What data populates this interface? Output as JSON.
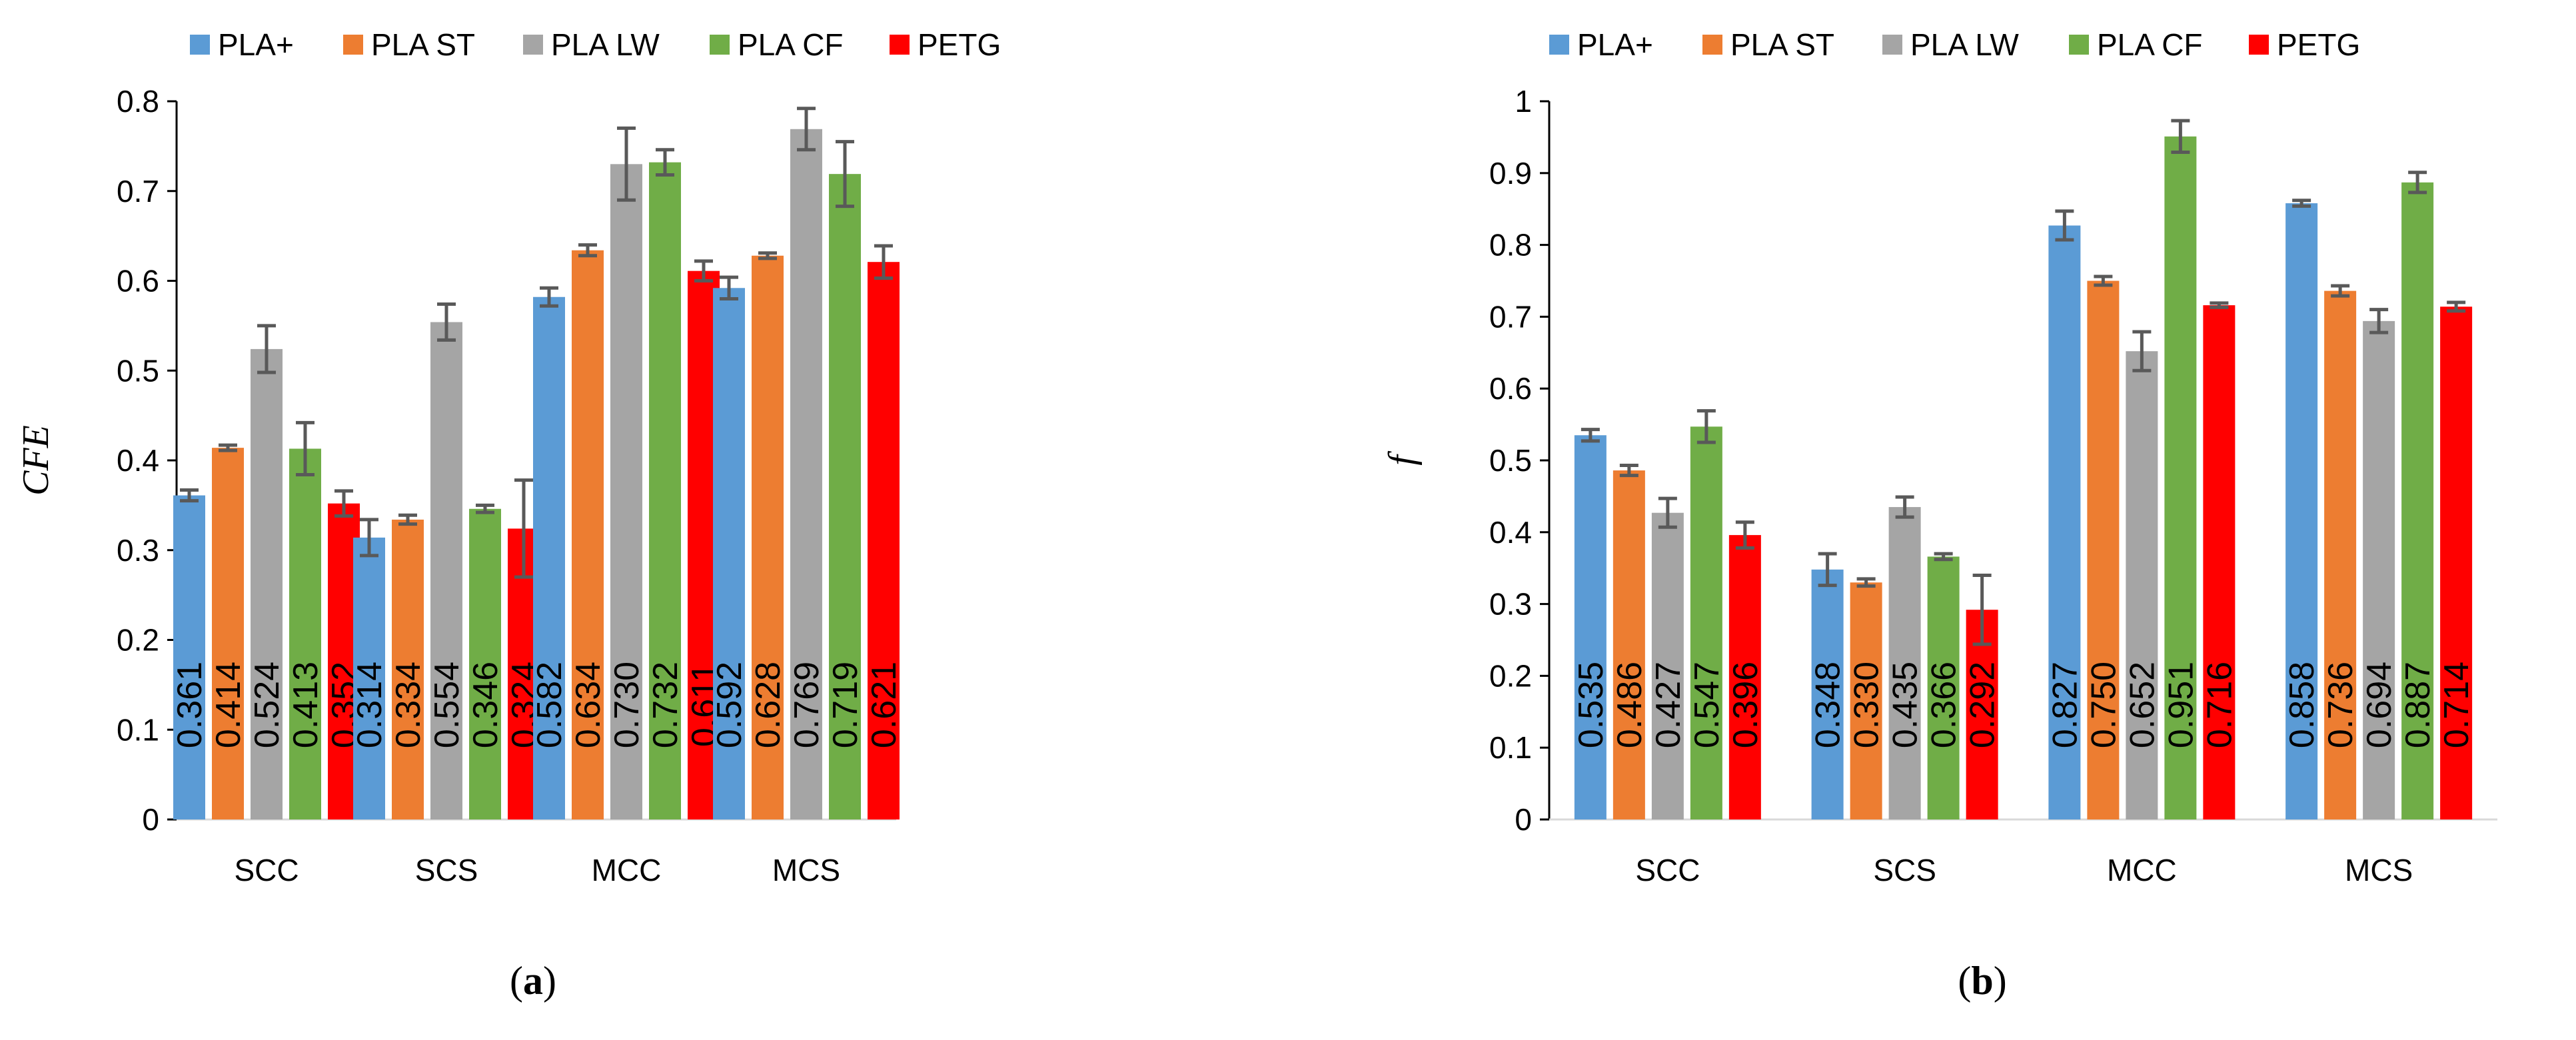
{
  "chart_data": [
    {
      "type": "bar",
      "panel_label": {
        "open": "(",
        "letter": "a",
        "close": ")"
      },
      "title": "",
      "xlabel": "",
      "ylabel": "CFE",
      "ylim": [
        0,
        0.8
      ],
      "yticks": [
        0,
        0.1,
        0.2,
        0.3,
        0.4,
        0.5,
        0.6,
        0.7,
        0.8
      ],
      "ytick_labels": [
        "0",
        "0.1",
        "0.2",
        "0.3",
        "0.4",
        "0.5",
        "0.6",
        "0.7",
        "0.8"
      ],
      "categories": [
        "SCC",
        "SCS",
        "MCC",
        "MCS"
      ],
      "legend_position": "top",
      "series": [
        {
          "name": "PLA+",
          "color": "#5B9BD5",
          "values": [
            0.361,
            0.314,
            0.582,
            0.592
          ],
          "labels": [
            "0.361",
            "0.314",
            "0.582",
            "0.592"
          ],
          "errors": [
            0.006,
            0.02,
            0.01,
            0.012
          ]
        },
        {
          "name": "PLA ST",
          "color": "#ED7D31",
          "values": [
            0.414,
            0.334,
            0.634,
            0.628
          ],
          "labels": [
            "0.414",
            "0.334",
            "0.634",
            "0.628"
          ],
          "errors": [
            0.003,
            0.005,
            0.006,
            0.003
          ]
        },
        {
          "name": "PLA LW",
          "color": "#A5A5A5",
          "values": [
            0.524,
            0.554,
            0.73,
            0.769
          ],
          "labels": [
            "0.524",
            "0.554",
            "0.730",
            "0.769"
          ],
          "errors": [
            0.026,
            0.02,
            0.04,
            0.023
          ]
        },
        {
          "name": "PLA CF",
          "color": "#70AD47",
          "values": [
            0.413,
            0.346,
            0.732,
            0.719
          ],
          "labels": [
            "0.413",
            "0.346",
            "0.732",
            "0.719"
          ],
          "errors": [
            0.029,
            0.004,
            0.014,
            0.036
          ]
        },
        {
          "name": "PETG",
          "color": "#FF0000",
          "values": [
            0.352,
            0.324,
            0.611,
            0.621
          ],
          "labels": [
            "0.352",
            "0.324",
            "0.611",
            "0.621"
          ],
          "errors": [
            0.014,
            0.054,
            0.011,
            0.018
          ]
        }
      ]
    },
    {
      "type": "bar",
      "panel_label": {
        "open": "(",
        "letter": "b",
        "close": ")"
      },
      "title": "",
      "xlabel": "",
      "ylabel": "f",
      "ylim": [
        0,
        1
      ],
      "yticks": [
        0,
        0.1,
        0.2,
        0.3,
        0.4,
        0.5,
        0.6,
        0.7,
        0.8,
        0.9,
        1
      ],
      "ytick_labels": [
        "0",
        "0.1",
        "0.2",
        "0.3",
        "0.4",
        "0.5",
        "0.6",
        "0.7",
        "0.8",
        "0.9",
        "1"
      ],
      "categories": [
        "SCC",
        "SCS",
        "MCC",
        "MCS"
      ],
      "legend_position": "top",
      "series": [
        {
          "name": "PLA+",
          "color": "#5B9BD5",
          "values": [
            0.535,
            0.348,
            0.827,
            0.858
          ],
          "labels": [
            "0.535",
            "0.348",
            "0.827",
            "0.858"
          ],
          "errors": [
            0.008,
            0.022,
            0.02,
            0.004
          ]
        },
        {
          "name": "PLA ST",
          "color": "#ED7D31",
          "values": [
            0.486,
            0.33,
            0.75,
            0.736
          ],
          "labels": [
            "0.486",
            "0.330",
            "0.750",
            "0.736"
          ],
          "errors": [
            0.007,
            0.005,
            0.006,
            0.007
          ]
        },
        {
          "name": "PLA LW",
          "color": "#A5A5A5",
          "values": [
            0.427,
            0.435,
            0.652,
            0.694
          ],
          "labels": [
            "0.427",
            "0.435",
            "0.652",
            "0.694"
          ],
          "errors": [
            0.02,
            0.014,
            0.027,
            0.016
          ]
        },
        {
          "name": "PLA CF",
          "color": "#70AD47",
          "values": [
            0.547,
            0.366,
            0.951,
            0.887
          ],
          "labels": [
            "0.547",
            "0.366",
            "0.951",
            "0.887"
          ],
          "errors": [
            0.022,
            0.004,
            0.022,
            0.014
          ]
        },
        {
          "name": "PETG",
          "color": "#FF0000",
          "values": [
            0.396,
            0.292,
            0.716,
            0.714
          ],
          "labels": [
            "0.396",
            "0.292",
            "0.716",
            "0.714"
          ],
          "errors": [
            0.018,
            0.048,
            0.003,
            0.006
          ]
        }
      ]
    }
  ]
}
